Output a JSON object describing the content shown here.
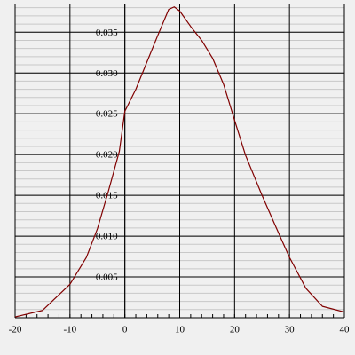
{
  "chart_data": {
    "type": "line",
    "x": [
      -20,
      -15,
      -10,
      -7,
      -5,
      -3,
      -1,
      0,
      2,
      4,
      6,
      8,
      9,
      10,
      12,
      14,
      16,
      18,
      20,
      22,
      25,
      28,
      30,
      33,
      36,
      40
    ],
    "series": [
      {
        "color": "#800000",
        "values": [
          0.0001,
          0.0009,
          0.0041,
          0.0074,
          0.0109,
          0.0155,
          0.0204,
          0.0253,
          0.028,
          0.0313,
          0.0346,
          0.0378,
          0.0381,
          0.0376,
          0.0357,
          0.034,
          0.0318,
          0.0286,
          0.0242,
          0.0199,
          0.015,
          0.0104,
          0.0074,
          0.0036,
          0.0014,
          0.0007
        ]
      }
    ],
    "xlim": [
      -20,
      40
    ],
    "ylim": [
      0,
      0.0384
    ],
    "xticks": [
      -20,
      -10,
      0,
      10,
      20,
      30,
      40
    ],
    "yticks": [
      0.005,
      {
        "value": 0.01,
        "label": "0.010"
      },
      0.015,
      {
        "value": 0.02,
        "label": "0.020"
      },
      0.025,
      {
        "value": 0.03,
        "label": "0.030"
      },
      0.035
    ],
    "grid": true
  }
}
